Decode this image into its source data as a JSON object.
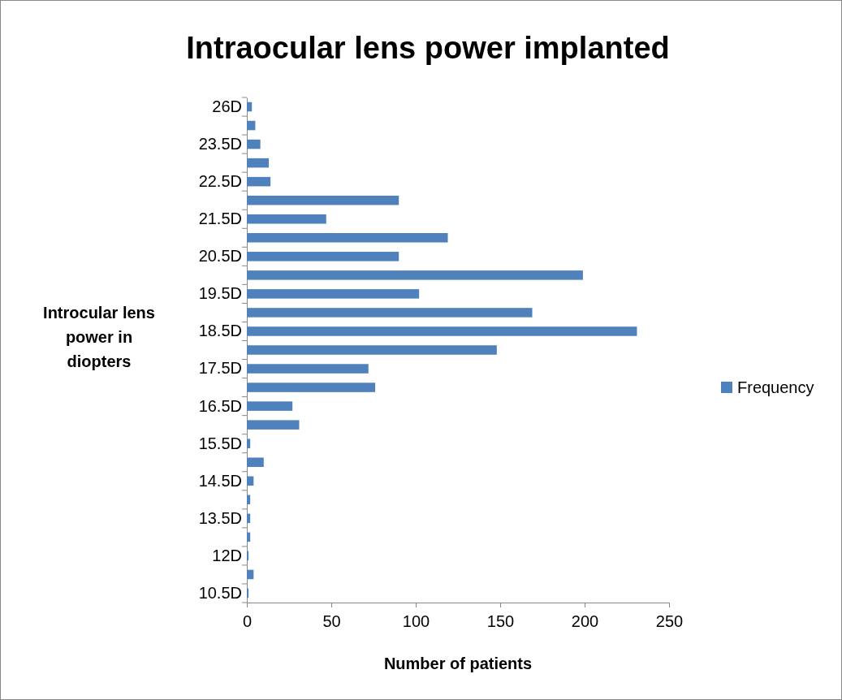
{
  "chart_data": {
    "type": "bar",
    "orientation": "horizontal",
    "title": "Intraocular lens power implanted",
    "xlabel": "Number of patients",
    "ylabel": "Introcular lens power in diopters",
    "categories": [
      "26D",
      null,
      "23.5D",
      null,
      "22.5D",
      null,
      "21.5D",
      null,
      "20.5D",
      null,
      "19.5D",
      null,
      "18.5D",
      null,
      "17.5D",
      null,
      "16.5D",
      null,
      "15.5D",
      null,
      "14.5D",
      null,
      "13.5D",
      null,
      "12D",
      null,
      "10.5D"
    ],
    "series": [
      {
        "name": "Frequency",
        "color": "#4f81bd",
        "values": [
          3,
          5,
          8,
          13,
          14,
          90,
          47,
          119,
          90,
          199,
          102,
          169,
          231,
          148,
          72,
          76,
          27,
          31,
          2,
          10,
          4,
          2,
          2,
          2,
          1,
          4,
          1
        ]
      }
    ],
    "xlim": [
      0,
      250
    ],
    "xticks": [
      0,
      50,
      100,
      150,
      200,
      250
    ],
    "grid": false,
    "legend": "right"
  }
}
